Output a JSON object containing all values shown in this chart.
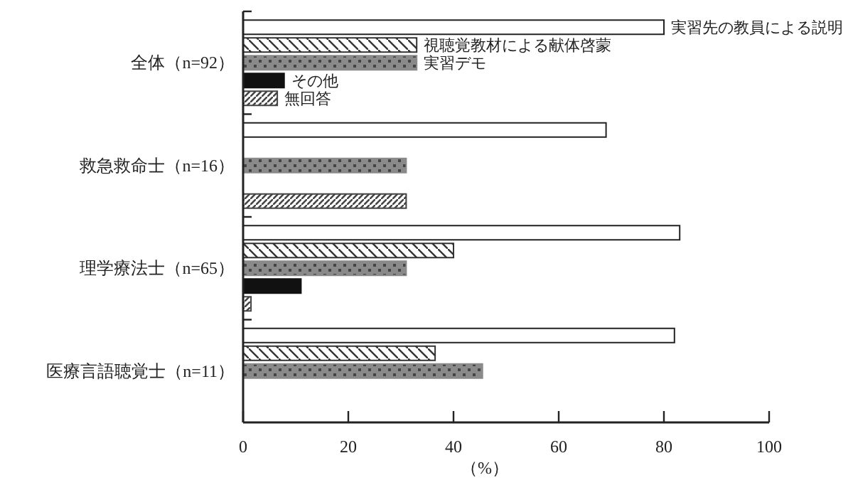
{
  "chart_data": {
    "type": "bar",
    "orientation": "horizontal",
    "xlabel": "（%）",
    "categories": [
      "全体（n=92）",
      "救急救命士（n=16）",
      "理学療法士（n=65）",
      "医療言語聴覚士（n=11）"
    ],
    "series": [
      {
        "name": "実習先の教員による説明",
        "color": "#ffffff",
        "values": [
          80,
          69,
          83,
          82
        ]
      },
      {
        "name": "視聴覚教材による献体啓蒙",
        "color": "#333333",
        "values": [
          33,
          null,
          40,
          36.5
        ]
      },
      {
        "name": "実習デモ",
        "color": "#8a8a8a",
        "values": [
          33,
          31,
          31,
          45.5
        ]
      },
      {
        "name": "その他",
        "color": "#111111",
        "values": [
          7.8,
          null,
          11,
          null
        ]
      },
      {
        "name": "無回答",
        "color": "#444444",
        "values": [
          6.5,
          31,
          1.5,
          null
        ]
      }
    ],
    "xlim": [
      0,
      100
    ],
    "xticks": [
      0,
      20,
      40,
      60,
      80,
      100
    ],
    "grid": false
  }
}
